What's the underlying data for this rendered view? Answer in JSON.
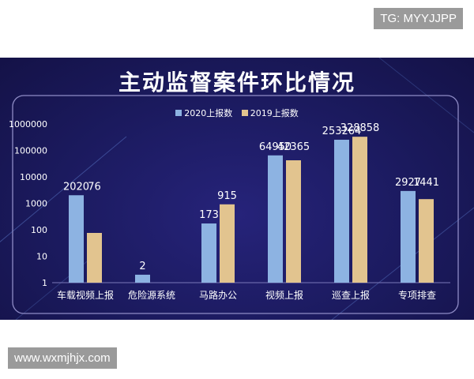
{
  "watermark_top": "TG: MYYJJPP",
  "watermark_bottom": "www.wxmjhjx.com",
  "colors": {
    "series_2020": "#8db3e2",
    "series_2019": "#e2c48f",
    "background": "#1b1a5e"
  },
  "chart_data": {
    "type": "bar",
    "title": "主动监督案件环比情况",
    "y_scale": "log",
    "ylim": [
      1,
      1000000
    ],
    "y_ticks": [
      "1",
      "10",
      "100",
      "1000",
      "10000",
      "100000",
      "1000000"
    ],
    "categories": [
      "车载视频上报",
      "危险源系统",
      "马路办公",
      "视频上报",
      "巡查上报",
      "专项排查"
    ],
    "series": [
      {
        "name": "2020上报数",
        "values": [
          2020,
          2,
          173,
          64950,
          253264,
          2927
        ],
        "labels": [
          "2020",
          "2",
          "173",
          "64950",
          "253264",
          "2927"
        ]
      },
      {
        "name": "2019上报数",
        "values": [
          76,
          null,
          915,
          42365,
          328858,
          1441
        ],
        "labels": [
          "76",
          "",
          "915",
          "42365",
          "328858",
          "1441"
        ]
      }
    ],
    "legend_position": "top-center",
    "grid": false
  }
}
